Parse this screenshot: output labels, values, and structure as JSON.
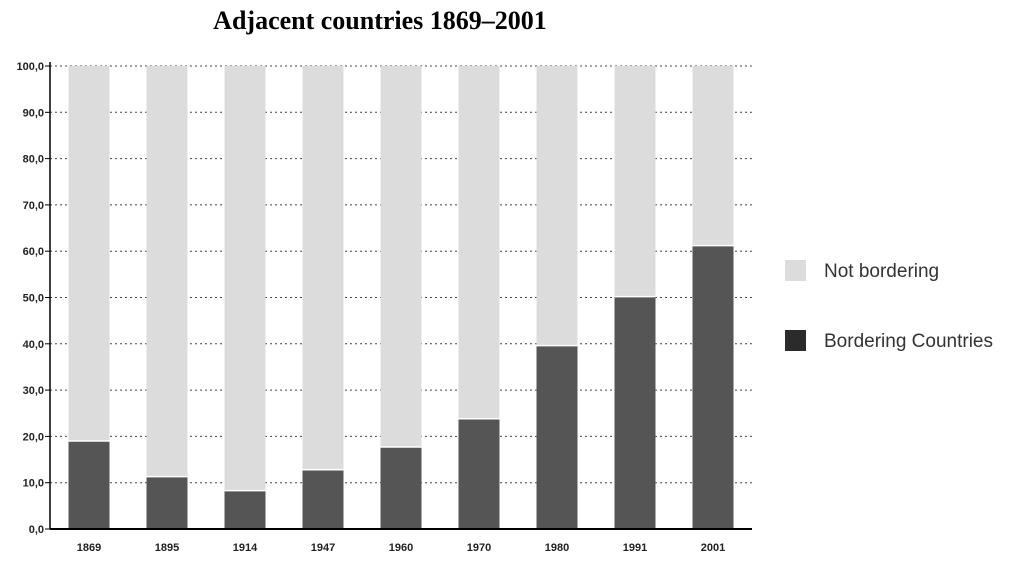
{
  "chart_data": {
    "type": "bar",
    "stacked": true,
    "title": "Adjacent countries 1869–2001",
    "categories": [
      "1869",
      "1895",
      "1914",
      "1947",
      "1960",
      "1970",
      "1980",
      "1991",
      "2001"
    ],
    "series": [
      {
        "name": "Bordering Countries",
        "color": "#555555",
        "values": [
          19.0,
          11.3,
          8.3,
          12.8,
          17.7,
          23.8,
          39.6,
          50.2,
          61.2
        ]
      },
      {
        "name": "Not bordering",
        "color": "#dcdcdc",
        "values": [
          81.0,
          88.7,
          91.7,
          87.2,
          82.3,
          76.2,
          60.4,
          49.8,
          38.8
        ]
      }
    ],
    "ylim": [
      0,
      100
    ],
    "yticks": [
      "0,0",
      "10,0",
      "20,0",
      "30,0",
      "40,0",
      "50,0",
      "60,0",
      "70,0",
      "80,0",
      "90,0",
      "100,0"
    ],
    "grid": true,
    "legend_position": "right",
    "legend": [
      {
        "label": "Not bordering",
        "color": "#dcdcdc"
      },
      {
        "label": "Bordering Countries",
        "color": "#2b2b2b"
      }
    ]
  }
}
